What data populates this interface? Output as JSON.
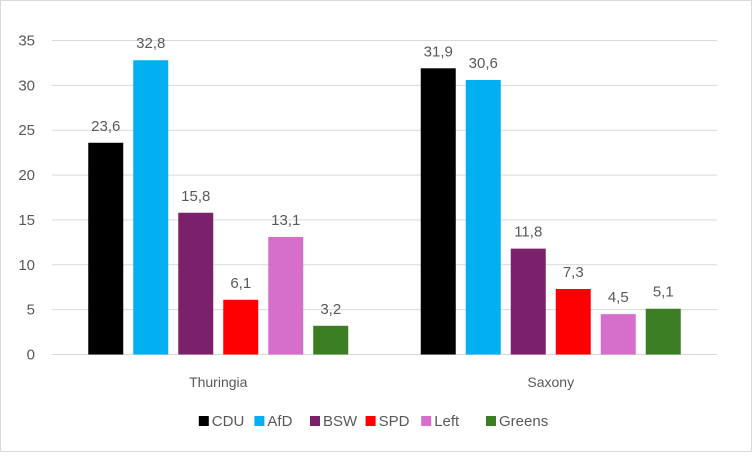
{
  "chart_data": {
    "type": "bar",
    "title": "",
    "xlabel": "",
    "ylabel": "",
    "ylim": [
      0,
      35
    ],
    "yticks": [
      "0",
      "5",
      "10",
      "15",
      "20",
      "25",
      "30",
      "35"
    ],
    "ytick_values": [
      0,
      5,
      10,
      15,
      20,
      25,
      30,
      35
    ],
    "grid": true,
    "legend_position": "bottom",
    "categories": [
      "Thuringia",
      "Saxony"
    ],
    "series": [
      {
        "name": "CDU",
        "color": "#000000",
        "values": [
          23.6,
          31.9
        ],
        "labels": [
          "23,6",
          "31,9"
        ]
      },
      {
        "name": "AfD",
        "color": "#00b0f0",
        "values": [
          32.8,
          30.6
        ],
        "labels": [
          "32,8",
          "30,6"
        ]
      },
      {
        "name": "BSW",
        "color": "#7b206b",
        "values": [
          15.8,
          11.8
        ],
        "labels": [
          "15,8",
          "11,8"
        ]
      },
      {
        "name": "SPD",
        "color": "#ff0000",
        "values": [
          6.1,
          7.3
        ],
        "labels": [
          "6,1",
          "7,3"
        ]
      },
      {
        "name": "Left",
        "color": "#d56fcb",
        "values": [
          13.1,
          4.5
        ],
        "labels": [
          "13,1",
          "4,5"
        ]
      },
      {
        "name": "Greens",
        "color": "#3a7d22",
        "values": [
          3.2,
          5.1
        ],
        "labels": [
          "3,2",
          "5,1"
        ]
      }
    ]
  }
}
